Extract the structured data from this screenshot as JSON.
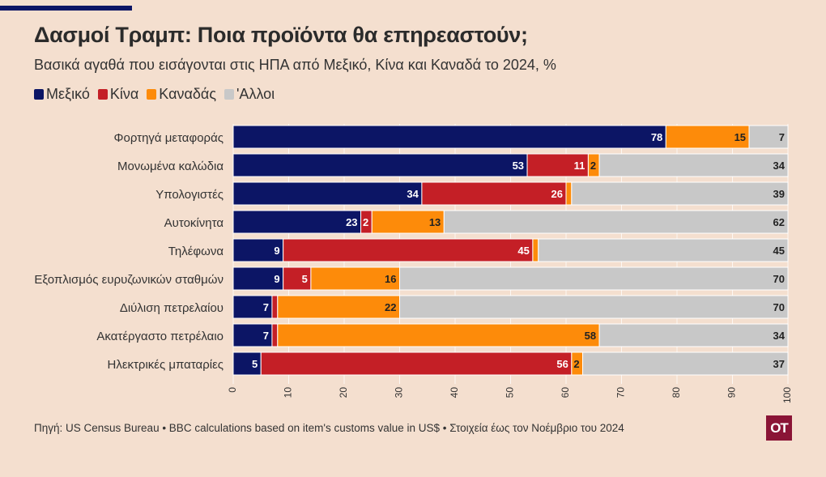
{
  "title": "Δασμοί Τραμπ: Ποια προϊόντα θα επηρεαστούν;",
  "subtitle": "Βασικά αγαθά που εισάγονται στις ΗΠΑ από Μεξικό, Κίνα και Καναδά το 2024, %",
  "footer": "Πηγή: US Census Bureau • BBC calculations based on item's customs value in US$ • Στοιχεία έως τον Νοέμβριο του 2024",
  "logo_text": "OT",
  "colors": {
    "background": "#f4dfcf",
    "mexico": "#0c1565",
    "china": "#c41f26",
    "canada": "#fd8b0a",
    "other": "#c8c8c8",
    "logo": "#8a1436"
  },
  "chart_data": {
    "type": "bar",
    "orientation": "horizontal",
    "stacked": true,
    "xlim": [
      0,
      100
    ],
    "xticks": [
      "0",
      "10",
      "20",
      "30",
      "40",
      "50",
      "60",
      "70",
      "80",
      "90",
      "100"
    ],
    "grid": true,
    "categories": [
      "Φορτηγά μεταφοράς",
      "Μονωμένα καλώδια",
      "Υπολογιστές",
      "Αυτοκίνητα",
      "Τηλέφωνα",
      "Εξοπλισμός ευρυζωνικών σταθμών",
      "Διύλιση πετρελαίου",
      "Ακατέργαστο πετρέλαιο",
      "Ηλεκτρικές μπαταρίες"
    ],
    "series": [
      {
        "name": "Μεξικό",
        "color": "#0c1565",
        "values": [
          78,
          53,
          34,
          23,
          9,
          9,
          7,
          7,
          5
        ],
        "labels": [
          "78",
          "53",
          "34",
          "23",
          "9",
          "9",
          "7",
          "7",
          "5"
        ]
      },
      {
        "name": "Κίνα",
        "color": "#c41f26",
        "values": [
          0,
          11,
          26,
          2,
          45,
          5,
          1,
          1,
          56
        ],
        "labels": [
          "",
          "11",
          "26",
          "2",
          "45",
          "5",
          "",
          "",
          "56"
        ]
      },
      {
        "name": "Καναδάς",
        "color": "#fd8b0a",
        "values": [
          15,
          2,
          1,
          13,
          1,
          16,
          22,
          58,
          2
        ],
        "labels": [
          "15",
          "2",
          "",
          "13",
          "",
          "16",
          "22",
          "58",
          "2"
        ]
      },
      {
        "name": "'Αλλοι",
        "color": "#c8c8c8",
        "values": [
          7,
          34,
          39,
          62,
          45,
          70,
          70,
          34,
          37
        ],
        "labels": [
          "7",
          "34",
          "39",
          "62",
          "45",
          "70",
          "70",
          "34",
          "37"
        ]
      }
    ]
  }
}
